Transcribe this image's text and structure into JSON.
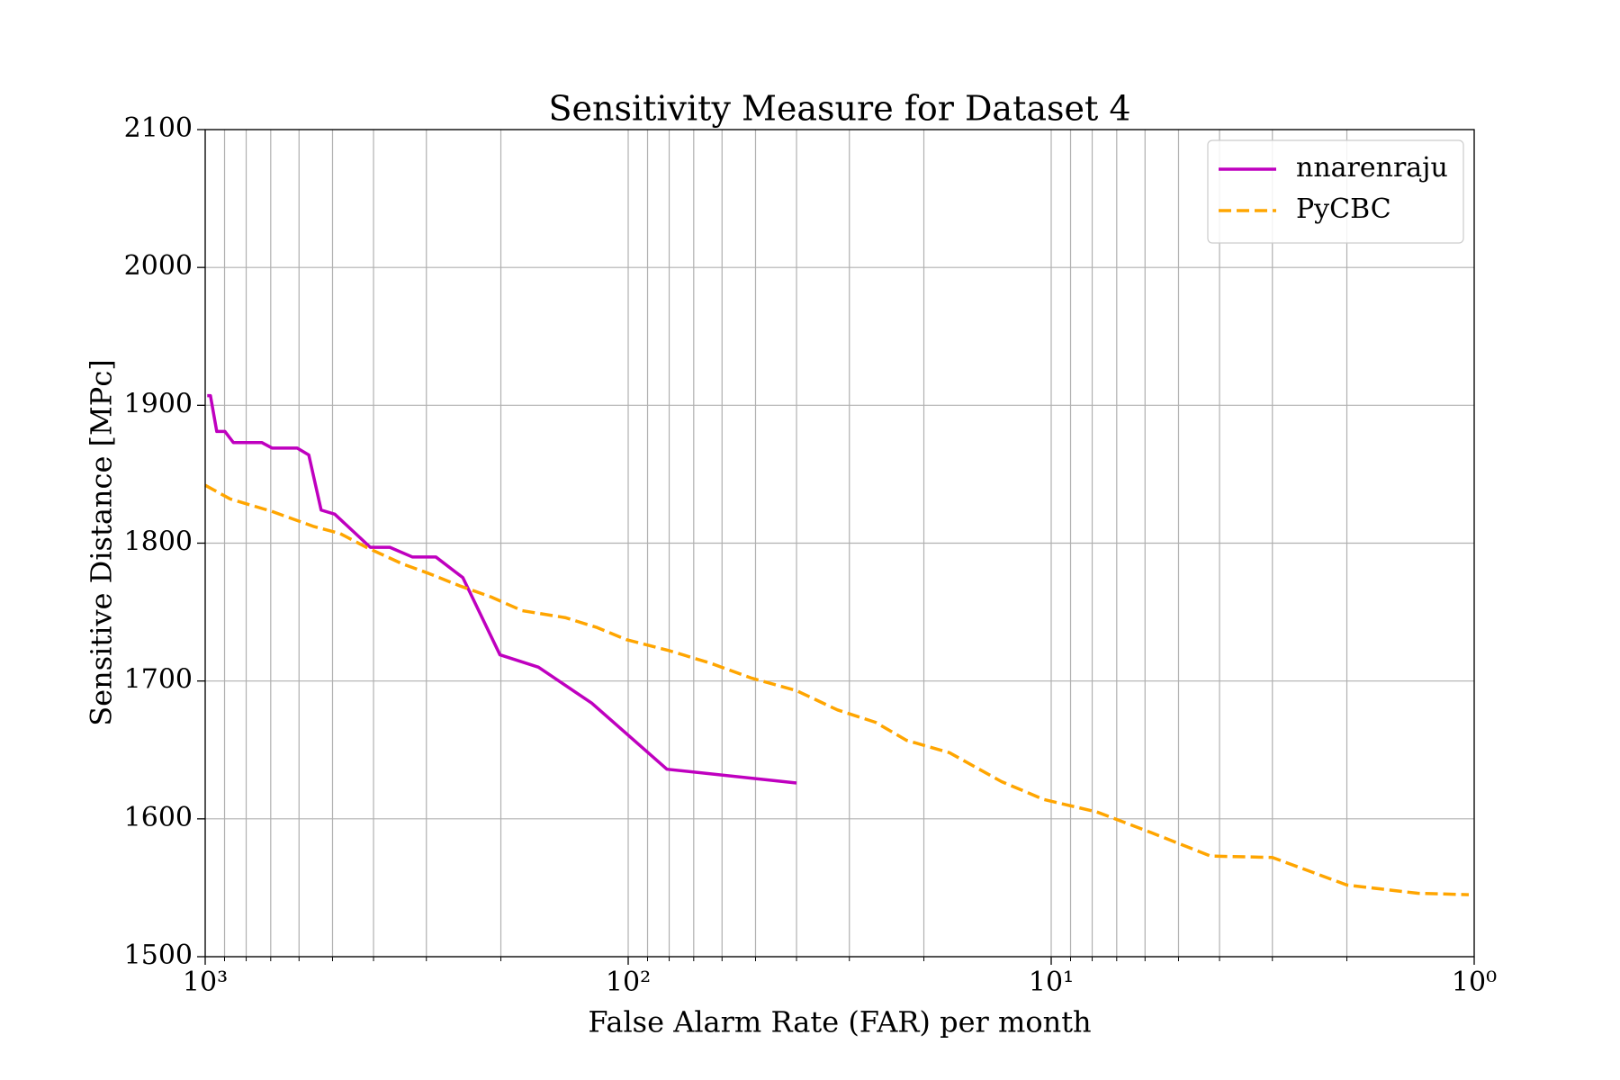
{
  "chart_data": {
    "type": "line",
    "title": "Sensitivity Measure for Dataset 4",
    "xlabel": "False Alarm Rate (FAR) per month",
    "ylabel": "Sensitive Distance [MPc]",
    "xscale": "log",
    "xlim": [
      1000,
      1
    ],
    "xticks": [
      {
        "value": 1000,
        "label": "10³"
      },
      {
        "value": 100,
        "label": "10²"
      },
      {
        "value": 10,
        "label": "10¹"
      },
      {
        "value": 1,
        "label": "10⁰"
      }
    ],
    "ylim": [
      1500,
      2100
    ],
    "yticks": [
      1500,
      1600,
      1700,
      1800,
      1900,
      2000,
      2100
    ],
    "grid": "both",
    "legend": "upper right",
    "series": [
      {
        "name": "nnarenraju",
        "color": "#bf00bf",
        "linestyle": "solid",
        "x": [
          989,
          972,
          939,
          898,
          858,
          735,
          695,
          606,
          569,
          532,
          494,
          407,
          366,
          324,
          285,
          246,
          201,
          163,
          122,
          81,
          40
        ],
        "values": [
          1907,
          1907,
          1881,
          1881,
          1873,
          1873,
          1869,
          1869,
          1864,
          1824,
          1821,
          1797,
          1797,
          1790,
          1790,
          1775,
          1719,
          1710,
          1684,
          1636,
          1626
        ]
      },
      {
        "name": "PyCBC",
        "color": "#ffa500",
        "linestyle": "dashed",
        "x": [
          1000,
          872,
          695,
          553,
          480,
          416,
          342,
          296,
          250,
          211,
          178,
          141,
          119,
          101,
          80,
          64,
          51,
          40,
          32,
          26,
          22,
          17.4,
          13.1,
          10.4,
          7.8,
          5.8,
          4.2,
          3.0,
          2.0,
          1.36,
          1.03
        ],
        "values": [
          1842,
          1832,
          1823,
          1812,
          1807,
          1797,
          1785,
          1778,
          1769,
          1761,
          1751,
          1746,
          1739,
          1730,
          1722,
          1713,
          1702,
          1693,
          1679,
          1670,
          1657,
          1648,
          1627,
          1614,
          1605,
          1590,
          1573,
          1572,
          1552,
          1546,
          1545
        ]
      }
    ]
  }
}
